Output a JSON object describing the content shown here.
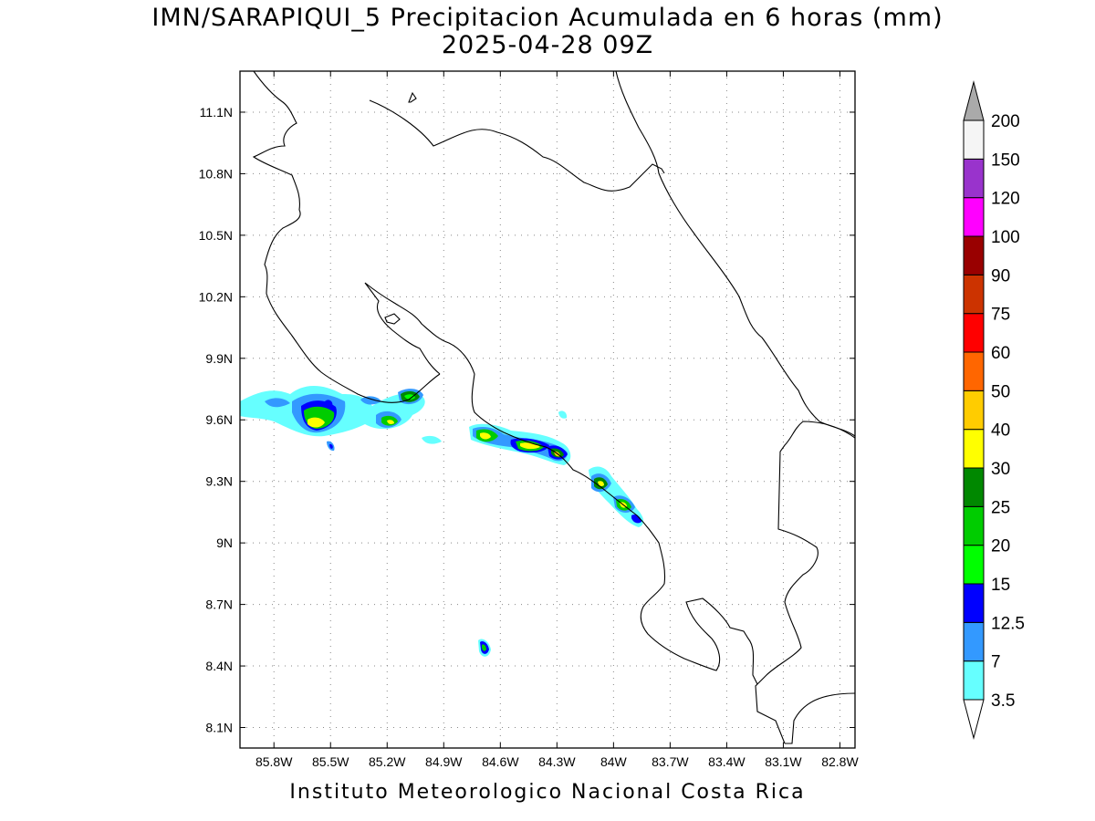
{
  "title": {
    "line1": "IMN/SARAPIQUI_5 Precipitacion Acumulada en 6 horas (mm)",
    "line2": "2025-04-28 09Z"
  },
  "footer": "Instituto Meteorologico Nacional Costa Rica",
  "map": {
    "lon_range": [
      -85.98,
      -82.72
    ],
    "lat_range": [
      8.0,
      11.3
    ],
    "x_ticks": [
      "85.8W",
      "85.5W",
      "85.2W",
      "84.9W",
      "84.6W",
      "84.3W",
      "84W",
      "83.7W",
      "83.4W",
      "83.1W",
      "82.8W"
    ],
    "x_tick_values": [
      -85.8,
      -85.5,
      -85.2,
      -84.9,
      -84.6,
      -84.3,
      -84.0,
      -83.7,
      -83.4,
      -83.1,
      -82.8
    ],
    "y_ticks": [
      "8.1N",
      "8.4N",
      "8.7N",
      "9N",
      "9.3N",
      "9.6N",
      "9.9N",
      "10.2N",
      "10.5N",
      "10.8N",
      "11.1N"
    ],
    "y_tick_values": [
      8.1,
      8.4,
      8.7,
      9.0,
      9.3,
      9.6,
      9.9,
      10.2,
      10.5,
      10.8,
      11.1
    ],
    "grid": true,
    "grid_style": "dotted"
  },
  "colorbar": {
    "levels": [
      "3.5",
      "7",
      "12.5",
      "15",
      "20",
      "25",
      "30",
      "40",
      "50",
      "60",
      "75",
      "90",
      "100",
      "120",
      "150",
      "200"
    ],
    "colors": [
      "#66ffff",
      "#3399ff",
      "#0000ff",
      "#00ff00",
      "#00cc00",
      "#008800",
      "#ffff00",
      "#ffcc00",
      "#ff6600",
      "#ff0000",
      "#cc3300",
      "#990000",
      "#ff00ff",
      "#9933cc",
      "#f5f5f5"
    ],
    "over_color": "#aaaaaa",
    "under_color": "#ffffff"
  }
}
